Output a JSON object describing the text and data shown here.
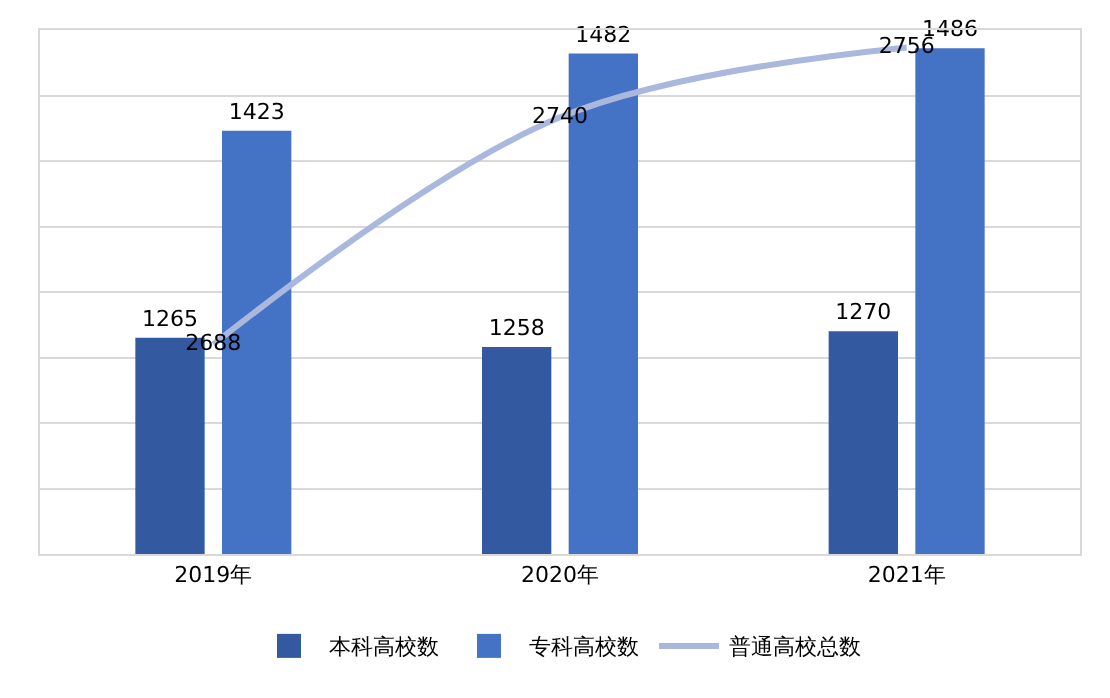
{
  "chart_data": {
    "type": "bar",
    "categories": [
      "2019年",
      "2020年",
      "2021年"
    ],
    "series": [
      {
        "name": "本科高校数",
        "color": "#335aa0",
        "values": [
          1265,
          1258,
          1270
        ]
      },
      {
        "name": "专科高校数",
        "color": "#4472c4",
        "values": [
          1423,
          1482,
          1486
        ]
      },
      {
        "name": "普通高校总数",
        "type": "line",
        "axis": "y2",
        "color": "#a9b8dc",
        "values": [
          2688,
          2740,
          2756
        ],
        "marker": "none"
      }
    ],
    "ylim": [
      1100,
      1500
    ],
    "yticks": [
      {
        "value": 1100,
        "label": null
      },
      {
        "value": 1150,
        "label": null
      },
      {
        "value": 1200,
        "label": null
      },
      {
        "value": 1250,
        "label": null
      },
      {
        "value": 1300,
        "label": null
      },
      {
        "value": 1350,
        "label": null
      },
      {
        "value": 1400,
        "label": null
      },
      {
        "value": 1450,
        "label": null
      }
    ],
    "y2lim": [
      2640,
      2760
    ],
    "grid": "y",
    "legend": "bottom",
    "tick_labels": "x",
    "data_labels": true
  }
}
